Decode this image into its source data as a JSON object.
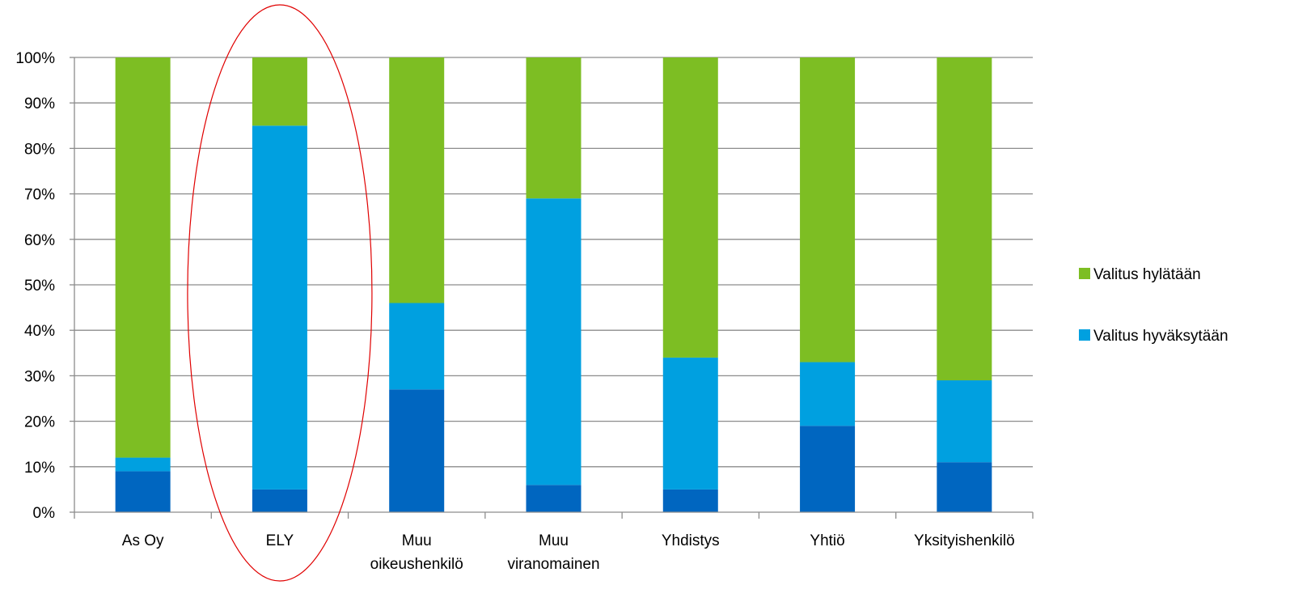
{
  "chart_data": {
    "type": "bar",
    "stacked": true,
    "title": "",
    "xlabel": "",
    "ylabel": "",
    "ylim": [
      0,
      100
    ],
    "y_ticks": [
      "0%",
      "10%",
      "20%",
      "30%",
      "40%",
      "50%",
      "60%",
      "70%",
      "80%",
      "90%",
      "100%"
    ],
    "grid": true,
    "categories": [
      [
        "As Oy"
      ],
      [
        "ELY"
      ],
      [
        "Muu",
        "oikeushenkilö"
      ],
      [
        "Muu",
        "viranomainen"
      ],
      [
        "Yhdistys"
      ],
      [
        "Yhtiö"
      ],
      [
        "Yksityishenkilö"
      ]
    ],
    "series": [
      {
        "name": "",
        "color": "#0066C0",
        "values": [
          9,
          5,
          27,
          6,
          5,
          19,
          11
        ]
      },
      {
        "name": "Valitus hyväksytään",
        "color": "#00A0E0",
        "values": [
          3,
          80,
          19,
          63,
          29,
          14,
          18
        ]
      },
      {
        "name": "Valitus hylätään",
        "color": "#7DBE23",
        "values": [
          88,
          15,
          54,
          31,
          66,
          67,
          71
        ]
      }
    ],
    "legend": {
      "position": "right",
      "entries": [
        {
          "label": "Valitus hylätään",
          "color": "#7DBE23"
        },
        {
          "label": "Valitus hyväksytään",
          "color": "#00A0E0"
        }
      ]
    },
    "annotation": {
      "shape": "ellipse",
      "color": "#E00000",
      "category_index": 1
    }
  }
}
